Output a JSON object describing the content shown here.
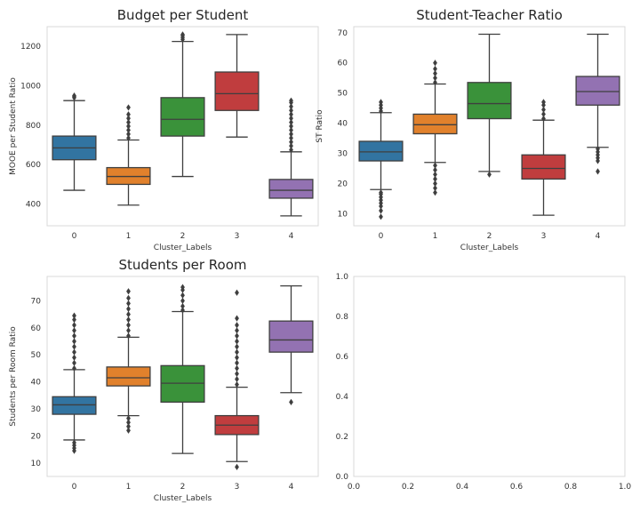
{
  "chart_data": [
    {
      "type": "box",
      "title": "Budget per Student",
      "xlabel": "Cluster_Labels",
      "ylabel": "MOOE per Student Ratio",
      "ylim": [
        290,
        1300
      ],
      "yticks": [
        400,
        600,
        800,
        1000,
        1200
      ],
      "categories": [
        "0",
        "1",
        "2",
        "3",
        "4"
      ],
      "colors": [
        "#3274a1",
        "#e1812c",
        "#3a923a",
        "#c03d3e",
        "#9372b2"
      ],
      "boxes": [
        {
          "label": "0",
          "whislo": 470,
          "q1": 625,
          "med": 685,
          "q3": 745,
          "whishi": 925,
          "fliers": [
            940,
            945,
            950
          ]
        },
        {
          "label": "1",
          "whislo": 395,
          "q1": 500,
          "med": 540,
          "q3": 585,
          "whishi": 725,
          "fliers": [
            735,
            755,
            775,
            795,
            815,
            835,
            855,
            890
          ]
        },
        {
          "label": "2",
          "whislo": 540,
          "q1": 745,
          "med": 830,
          "q3": 940,
          "whishi": 1225,
          "fliers": [
            1235,
            1245,
            1255,
            1260
          ]
        },
        {
          "label": "3",
          "whislo": 740,
          "q1": 875,
          "med": 960,
          "q3": 1070,
          "whishi": 1260,
          "fliers": []
        },
        {
          "label": "4",
          "whislo": 340,
          "q1": 430,
          "med": 470,
          "q3": 525,
          "whishi": 665,
          "fliers": [
            675,
            695,
            715,
            735,
            755,
            775,
            795,
            815,
            835,
            855,
            875,
            895,
            915,
            925
          ]
        }
      ]
    },
    {
      "type": "box",
      "title": "Student-Teacher Ratio",
      "xlabel": "Cluster_Labels",
      "ylabel": "ST Ratio",
      "ylim": [
        6,
        72
      ],
      "yticks": [
        10,
        20,
        30,
        40,
        50,
        60,
        70
      ],
      "categories": [
        "0",
        "1",
        "2",
        "3",
        "4"
      ],
      "colors": [
        "#3274a1",
        "#e1812c",
        "#3a923a",
        "#c03d3e",
        "#9372b2"
      ],
      "boxes": [
        {
          "label": "0",
          "whislo": 18,
          "q1": 27.5,
          "med": 30.5,
          "q3": 34,
          "whishi": 43.5,
          "fliers": [
            9,
            11,
            12.5,
            13.5,
            14.5,
            15.5,
            16.5,
            17,
            44,
            45,
            46,
            47
          ]
        },
        {
          "label": "1",
          "whislo": 27,
          "q1": 36.5,
          "med": 39.5,
          "q3": 43,
          "whishi": 53,
          "fliers": [
            17,
            18.5,
            20,
            21.5,
            23,
            24.5,
            26,
            53.5,
            55,
            56.5,
            58,
            60
          ]
        },
        {
          "label": "2",
          "whislo": 24,
          "q1": 41.5,
          "med": 46.5,
          "q3": 53.5,
          "whishi": 69.5,
          "fliers": [
            23
          ]
        },
        {
          "label": "3",
          "whislo": 9.5,
          "q1": 21.5,
          "med": 25,
          "q3": 29.5,
          "whishi": 41,
          "fliers": [
            41.5,
            43,
            44.5,
            46,
            47
          ]
        },
        {
          "label": "4",
          "whislo": 32,
          "q1": 46,
          "med": 50.5,
          "q3": 55.5,
          "whishi": 69.5,
          "fliers": [
            24,
            27.5,
            28.5,
            29.5,
            30.5,
            31.5
          ]
        }
      ]
    },
    {
      "type": "box",
      "title": "Students per Room",
      "xlabel": "Cluster_Labels",
      "ylabel": "Students per Room Ratio",
      "ylim": [
        5,
        79
      ],
      "yticks": [
        10,
        20,
        30,
        40,
        50,
        60,
        70
      ],
      "categories": [
        "0",
        "1",
        "2",
        "3",
        "4"
      ],
      "colors": [
        "#3274a1",
        "#e1812c",
        "#3a923a",
        "#c03d3e",
        "#9372b2"
      ],
      "boxes": [
        {
          "label": "0",
          "whislo": 18.5,
          "q1": 28,
          "med": 31.5,
          "q3": 34.5,
          "whishi": 44.5,
          "fliers": [
            14.5,
            15.5,
            16.5,
            17.5,
            45,
            47,
            49,
            51,
            53,
            55,
            57,
            59,
            61,
            63,
            64.5
          ]
        },
        {
          "label": "1",
          "whislo": 27.5,
          "q1": 38.5,
          "med": 41.5,
          "q3": 45.5,
          "whishi": 56.5,
          "fliers": [
            22,
            23.5,
            25,
            26.5,
            57,
            59,
            61,
            63,
            65,
            67,
            69,
            71,
            73.5
          ]
        },
        {
          "label": "2",
          "whislo": 13.5,
          "q1": 32.5,
          "med": 39.5,
          "q3": 46,
          "whishi": 66,
          "fliers": [
            66.5,
            68,
            70,
            72,
            74,
            75
          ]
        },
        {
          "label": "3",
          "whislo": 10.5,
          "q1": 20.5,
          "med": 24,
          "q3": 27.5,
          "whishi": 38,
          "fliers": [
            8.5,
            39,
            41,
            43,
            45,
            47,
            49,
            51,
            53,
            55,
            57,
            59,
            61,
            63.5,
            73
          ]
        },
        {
          "label": "4",
          "whislo": 36,
          "q1": 51,
          "med": 55.5,
          "q3": 62.5,
          "whishi": 75.5,
          "fliers": [
            32.5
          ]
        }
      ]
    },
    {
      "type": "empty",
      "title": "",
      "xlim": [
        0,
        1
      ],
      "ylim": [
        0,
        1
      ],
      "xticks": [
        "0.0",
        "0.2",
        "0.4",
        "0.6",
        "0.8",
        "1.0"
      ],
      "yticks": [
        "0.0",
        "0.2",
        "0.4",
        "0.6",
        "0.8",
        "1.0"
      ]
    }
  ]
}
